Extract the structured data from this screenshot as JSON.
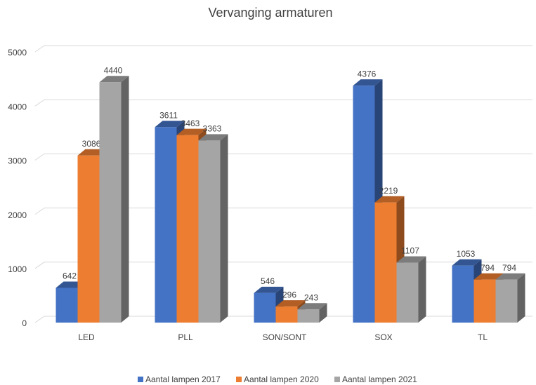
{
  "chart_data": {
    "type": "bar3d",
    "title": "Vervanging armaturen",
    "categories": [
      "LED",
      "PLL",
      "SON/SONT",
      "SOX",
      "TL"
    ],
    "series": [
      {
        "name": "Aantal lampen 2017",
        "color": "#4472c4",
        "values": [
          642,
          3611,
          546,
          4376,
          1053
        ]
      },
      {
        "name": "Aantal lampen 2020",
        "color": "#ed7d31",
        "values": [
          3086,
          3463,
          296,
          2219,
          794
        ]
      },
      {
        "name": "Aantal lampen 2021",
        "color": "#a5a5a5",
        "values": [
          4440,
          3363,
          243,
          1107,
          794
        ]
      }
    ],
    "ylim": [
      0,
      5000
    ],
    "yticks": [
      0,
      1000,
      2000,
      3000,
      4000,
      5000
    ],
    "grid": true,
    "legend": "bottom"
  }
}
